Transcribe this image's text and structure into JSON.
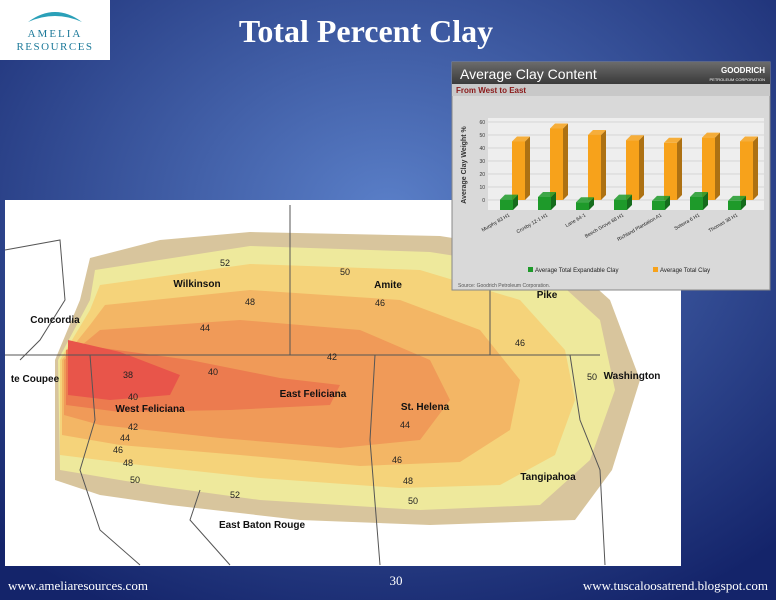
{
  "header": {
    "logo_top": "AMELIA",
    "logo_bottom": "RESOURCES",
    "title": "Total Percent Clay"
  },
  "map": {
    "counties": [
      "Wilkinson",
      "Amite",
      "Pike",
      "Concordia",
      "te Coupee",
      "West Feliciana",
      "East Feliciana",
      "St. Helena",
      "Washington",
      "Tangipahoa",
      "East Baton Rouge"
    ],
    "contour_labels": [
      52,
      50,
      48,
      46,
      44,
      42,
      38,
      40,
      40,
      42,
      44,
      46,
      48,
      50,
      52,
      46,
      48,
      50,
      44,
      46,
      50
    ]
  },
  "chart_data": {
    "type": "bar3d",
    "title": "Average Clay Content",
    "subtitle": "From West to East",
    "logo": "GOODRICH",
    "logo_sub": "PETROLEUM CORPORATION",
    "y_label": "Average Clay Weight %",
    "source": "Source: Goodrich Petroleum Corporation.",
    "categories": [
      "Murphy 83 H1",
      "Crosby 12-1 H1",
      "Lane 64-1",
      "Beech Grove 68 H1",
      "Richland Plantation A1",
      "Soterra 6 H1",
      "Thomas 38 H1"
    ],
    "series": [
      {
        "name": "Average Total Expandable Clay",
        "color": "#1e9a2a",
        "values": [
          8,
          10,
          6,
          8,
          7,
          10,
          7
        ]
      },
      {
        "name": "Average Total Clay",
        "color": "#f7a21b",
        "values": [
          45,
          55,
          50,
          46,
          44,
          48,
          45
        ]
      }
    ],
    "ylim": [
      0,
      60
    ],
    "yticks": [
      0,
      10,
      20,
      30,
      40,
      50,
      60
    ]
  },
  "footer": {
    "left": "www.ameliaresources.com",
    "page": "30",
    "right": "www.tuscaloosatrend.blogspot.com"
  }
}
